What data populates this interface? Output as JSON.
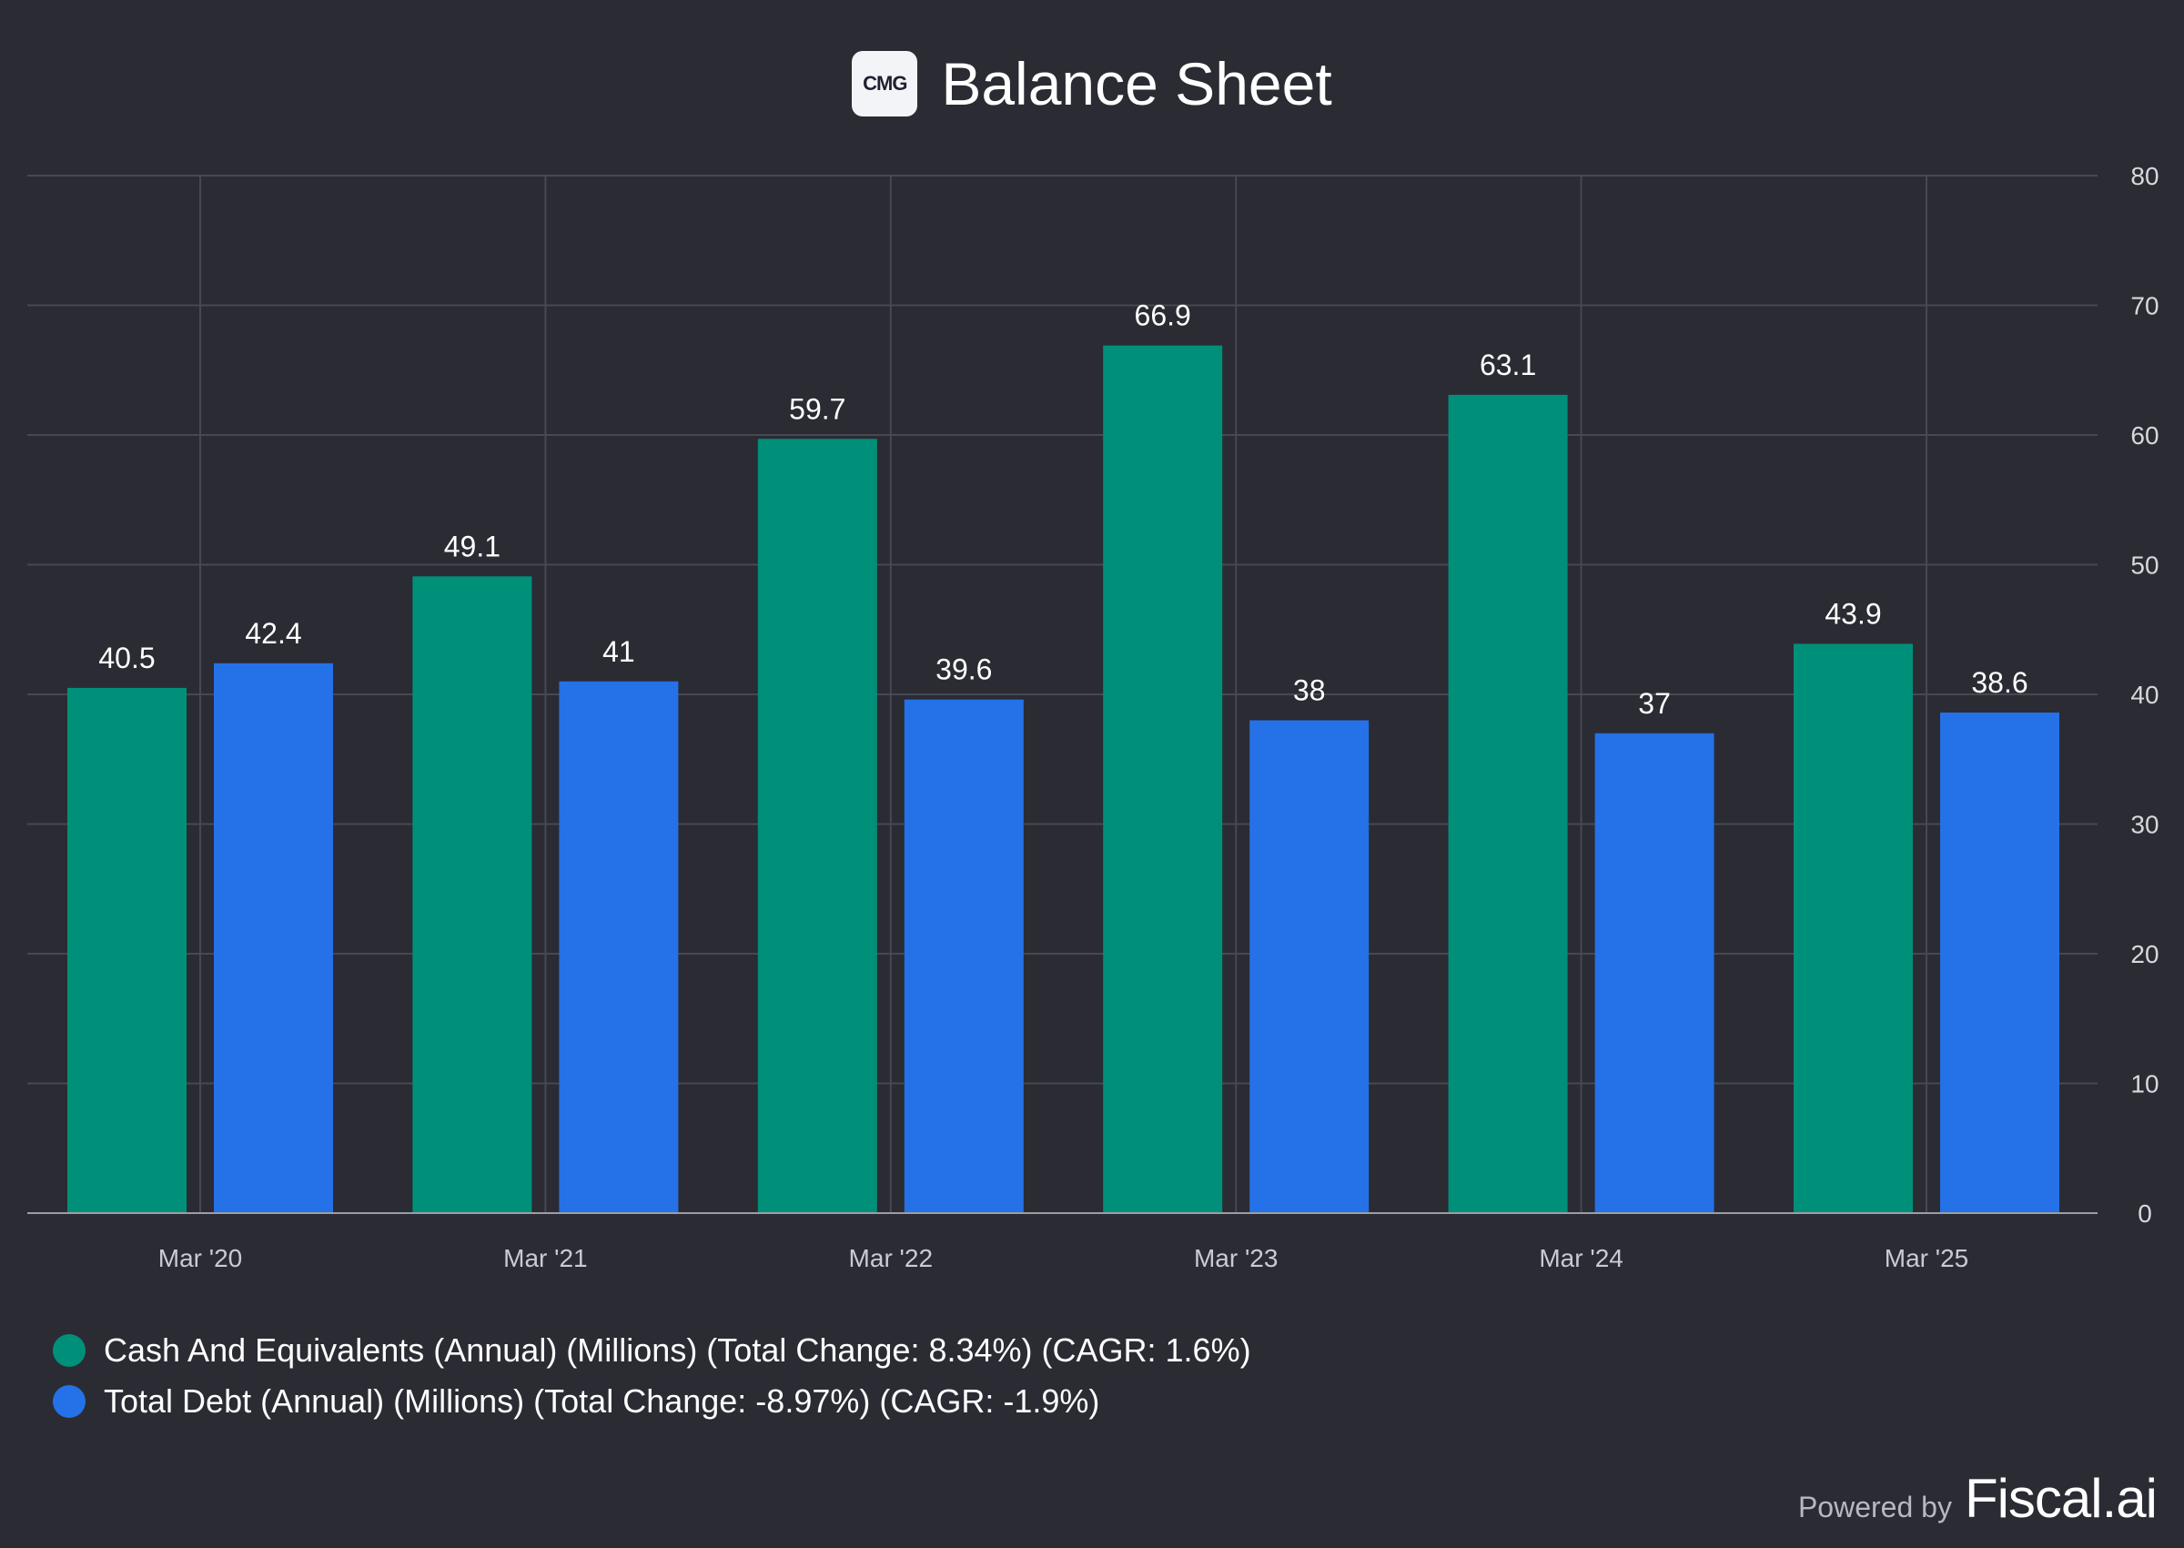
{
  "header": {
    "logo_text": "CMG"
  },
  "chart_data": {
    "type": "bar",
    "title": "Balance Sheet",
    "categories": [
      "Mar '20",
      "Mar '21",
      "Mar '22",
      "Mar '23",
      "Mar '24",
      "Mar '25"
    ],
    "series": [
      {
        "name": "Cash And Equivalents (Annual) (Millions) (Total Change: 8.34%) (CAGR: 1.6%)",
        "color": "#00907a",
        "values": [
          40.5,
          49.1,
          59.7,
          66.9,
          63.1,
          43.9
        ],
        "labels": [
          "40.5",
          "49.1",
          "59.7",
          "66.9",
          "63.1",
          "43.9"
        ]
      },
      {
        "name": "Total Debt (Annual) (Millions) (Total Change: -8.97%) (CAGR: -1.9%)",
        "color": "#2571e8",
        "values": [
          42.4,
          41,
          39.6,
          38,
          37,
          38.6
        ],
        "labels": [
          "42.4",
          "41",
          "39.6",
          "38",
          "37",
          "38.6"
        ]
      }
    ],
    "ylim": [
      0,
      80
    ],
    "y_ticks": [
      0,
      10,
      20,
      30,
      40,
      50,
      60,
      70,
      80
    ],
    "y_axis_side": "right",
    "grid": true,
    "legend": "bottom-left"
  },
  "footer": {
    "powered_by": "Powered by",
    "brand": "Fiscal.ai"
  }
}
